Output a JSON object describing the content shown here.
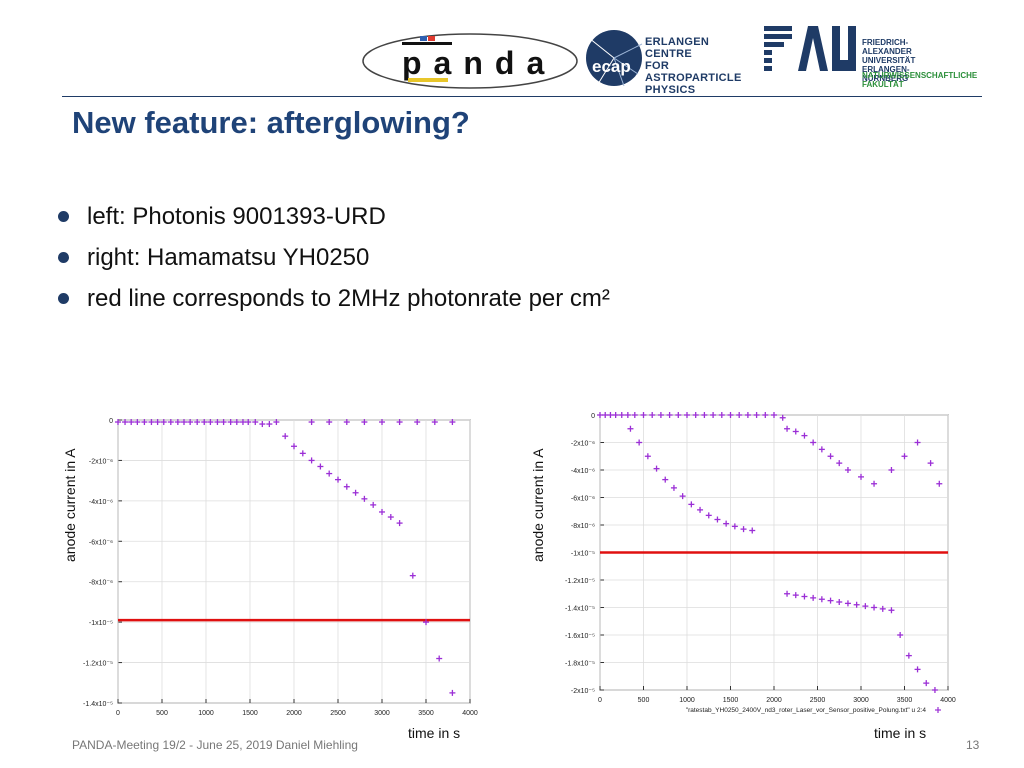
{
  "header": {
    "ecap_lines": [
      "ERLANGEN CENTRE",
      "FOR ASTROPARTICLE",
      "PHYSICS"
    ],
    "ecap_mark": "ecap",
    "panda_mark": "panda",
    "fau_mark": "FAU",
    "fau_lines": [
      "FRIEDRICH-ALEXANDER",
      "UNIVERSITÄT",
      "ERLANGEN-NÜRNBERG"
    ],
    "fau_faculty_lines": [
      "NATURWISSENSCHAFTLICHE",
      "FAKULTÄT"
    ]
  },
  "title": "New feature: afterglowing?",
  "bullets": [
    "left: Photonis 9001393-URD",
    "right: Hamamatsu YH0250",
    "red line corresponds to 2MHz photonrate per cm²"
  ],
  "footer": "PANDA-Meeting 19/2 - June 25, 2019 Daniel Miehling",
  "page_number": "13",
  "colors": {
    "title": "#1f4378",
    "marker": "#9b2fd6",
    "threshold": "#e01010"
  },
  "chart_data": [
    {
      "type": "scatter",
      "ylabel": "anode current in A",
      "xlabel": "time in s",
      "xlim": [
        0,
        4000
      ],
      "ylim": [
        -1.4e-05,
        0
      ],
      "xticks": [
        "0",
        "500",
        "1000",
        "1500",
        "2000",
        "2500",
        "3000",
        "3500",
        "4000"
      ],
      "yticks": [
        {
          "value": 0,
          "label": "0"
        },
        {
          "value": -2e-06,
          "label": "-2x10⁻⁶"
        },
        {
          "value": -4e-06,
          "label": "-4x10⁻⁶"
        },
        {
          "value": -6e-06,
          "label": "-6x10⁻⁶"
        },
        {
          "value": -8e-06,
          "label": "-8x10⁻⁶"
        },
        {
          "value": -1e-05,
          "label": "-1x10⁻⁵"
        },
        {
          "value": -1.2e-05,
          "label": "-1.2x10⁻⁵"
        },
        {
          "value": -1.4e-05,
          "label": "-1.4x10⁻⁵"
        }
      ],
      "grid": true,
      "threshold": -9.9e-06,
      "series": [
        {
          "x": [
            0,
            80,
            150,
            220,
            300,
            380,
            450,
            520,
            600,
            680,
            750,
            820,
            900,
            980,
            1050,
            1130,
            1200,
            1280,
            1350,
            1420,
            1480,
            1560,
            1640,
            1720,
            1800,
            1900,
            2000,
            2100,
            2200,
            2300,
            2400,
            2500,
            2600,
            2700,
            2800,
            2900,
            3000,
            3100,
            3200,
            3350,
            3500,
            3650,
            3800,
            2200,
            2400,
            2600,
            2800,
            3000,
            3200,
            3400,
            3600,
            3800
          ],
          "y": [
            -1e-07,
            -1e-07,
            -1e-07,
            -1e-07,
            -1e-07,
            -1e-07,
            -1e-07,
            -1e-07,
            -1e-07,
            -1e-07,
            -1e-07,
            -1e-07,
            -1e-07,
            -1e-07,
            -1e-07,
            -1e-07,
            -1e-07,
            -1e-07,
            -1e-07,
            -1e-07,
            -1e-07,
            -1e-07,
            -2e-07,
            -2e-07,
            -1e-07,
            -8e-07,
            -1.3e-06,
            -1.65e-06,
            -2e-06,
            -2.3e-06,
            -2.65e-06,
            -2.95e-06,
            -3.3e-06,
            -3.6e-06,
            -3.9e-06,
            -4.2e-06,
            -4.55e-06,
            -4.8e-06,
            -5.1e-06,
            -7.7e-06,
            -1e-05,
            -1.18e-05,
            -1.35e-05,
            -1e-07,
            -1e-07,
            -1e-07,
            -1e-07,
            -1e-07,
            -1e-07,
            -1e-07,
            -1e-07,
            -1e-07
          ]
        }
      ]
    },
    {
      "type": "scatter",
      "ylabel": "anode current in A",
      "xlabel": "time in s",
      "xlim": [
        0,
        4000
      ],
      "ylim": [
        -2e-05,
        0
      ],
      "xticks": [
        "0",
        "500",
        "1000",
        "1500",
        "2000",
        "2500",
        "3000",
        "3500",
        "4000"
      ],
      "yticks": [
        {
          "value": 0,
          "label": "0"
        },
        {
          "value": -2e-06,
          "label": "-2x10⁻⁶"
        },
        {
          "value": -4e-06,
          "label": "-4x10⁻⁶"
        },
        {
          "value": -6e-06,
          "label": "-6x10⁻⁶"
        },
        {
          "value": -8e-06,
          "label": "-8x10⁻⁶"
        },
        {
          "value": -1e-05,
          "label": "-1x10⁻⁵"
        },
        {
          "value": -1.2e-05,
          "label": "-1.2x10⁻⁵"
        },
        {
          "value": -1.4e-05,
          "label": "-1.4x10⁻⁵"
        },
        {
          "value": -1.6e-05,
          "label": "-1.6x10⁻⁵"
        },
        {
          "value": -1.8e-05,
          "label": "-1.8x10⁻⁵"
        },
        {
          "value": -2e-05,
          "label": "-2x10⁻⁵"
        }
      ],
      "grid": true,
      "threshold": -1e-05,
      "legend": "\"ratestab_YH0250_2400V_nd3_roter_Laser_vor_Sensor_positive_Polung.txt\" u 2:4",
      "legend_position": "bottom-right",
      "series": [
        {
          "x": [
            0,
            60,
            120,
            180,
            250,
            320,
            400,
            500,
            600,
            700,
            800,
            900,
            1000,
            1100,
            1200,
            1300,
            1400,
            1500,
            1600,
            1700,
            1800,
            1900,
            2000,
            2100,
            350,
            450,
            550,
            650,
            750,
            850,
            950,
            1050,
            1150,
            1250,
            1350,
            1450,
            1550,
            1650,
            1750,
            2150,
            2250,
            2350,
            2450,
            2550,
            2650,
            2750,
            2850,
            2950,
            3050,
            3150,
            3250,
            3350,
            3450,
            3550,
            3650,
            3750,
            3850,
            2150,
            2250,
            2350,
            2450,
            2550,
            2650,
            2750,
            2850,
            3000,
            3150,
            3350,
            3500,
            3650,
            3800,
            3900
          ],
          "y": [
            0,
            0,
            0,
            0,
            0,
            0,
            0,
            0,
            0,
            0,
            0,
            0,
            0,
            0,
            0,
            0,
            0,
            0,
            0,
            0,
            0,
            0,
            0,
            -2e-07,
            -1e-06,
            -2e-06,
            -3e-06,
            -3.9e-06,
            -4.7e-06,
            -5.3e-06,
            -5.9e-06,
            -6.5e-06,
            -6.9e-06,
            -7.3e-06,
            -7.6e-06,
            -7.9e-06,
            -8.1e-06,
            -8.3e-06,
            -8.4e-06,
            -1.3e-05,
            -1.31e-05,
            -1.32e-05,
            -1.33e-05,
            -1.34e-05,
            -1.35e-05,
            -1.36e-05,
            -1.37e-05,
            -1.38e-05,
            -1.39e-05,
            -1.4e-05,
            -1.41e-05,
            -1.42e-05,
            -1.6e-05,
            -1.75e-05,
            -1.85e-05,
            -1.95e-05,
            -2e-05,
            -1e-06,
            -1.2e-06,
            -1.5e-06,
            -2e-06,
            -2.5e-06,
            -3e-06,
            -3.5e-06,
            -4e-06,
            -4.5e-06,
            -5e-06,
            -4e-06,
            -3e-06,
            -2e-06,
            -3.5e-06,
            -5e-06
          ]
        }
      ]
    }
  ]
}
